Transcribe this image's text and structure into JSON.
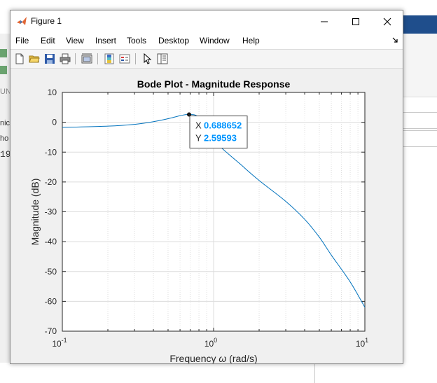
{
  "window": {
    "title": "Figure 1",
    "controls": {
      "minimize": "—",
      "maximize": "☐",
      "close": "✕"
    }
  },
  "menubar": {
    "items": [
      "File",
      "Edit",
      "View",
      "Insert",
      "Tools",
      "Desktop",
      "Window",
      "Help"
    ],
    "overflow_icon": "dock-arrow-icon"
  },
  "toolbar": {
    "icons": [
      "new-figure-icon",
      "open-file-icon",
      "save-icon",
      "print-icon",
      "link-plot-icon",
      "colorbar-icon",
      "legend-icon",
      "pointer-icon",
      "property-inspector-icon"
    ]
  },
  "background": {
    "left_fragments": [
      "UN",
      "nicl",
      "ho",
      "19"
    ]
  },
  "chart_data": {
    "type": "line",
    "title": "Bode Plot - Magnitude Response",
    "xlabel_prefix": "Frequency ",
    "xlabel_symbol": "ω",
    "xlabel_suffix": " (rad/s)",
    "ylabel": "Magnitude (dB)",
    "xscale": "log",
    "xlim": [
      0.1,
      10
    ],
    "ylim": [
      -70,
      10
    ],
    "grid": true,
    "minor_grid_x": true,
    "xticks": [
      {
        "base": "10",
        "exp": "-1",
        "value": 0.1
      },
      {
        "base": "10",
        "exp": "0",
        "value": 1
      },
      {
        "base": "10",
        "exp": "1",
        "value": 10
      }
    ],
    "yticks": [
      "10",
      "0",
      "-10",
      "-20",
      "-30",
      "-40",
      "-50",
      "-60",
      "-70"
    ],
    "line_color": "#0072bd",
    "series": [
      {
        "x": [
          0.1,
          0.2,
          0.3,
          0.4,
          0.5,
          0.6,
          0.688652,
          0.8,
          1.0,
          1.5,
          2.0,
          3.0,
          4.0,
          5.0,
          6.0,
          8.0,
          10.0
        ],
        "y": [
          -1.7,
          -1.3,
          -0.7,
          0.2,
          1.2,
          2.2,
          2.59593,
          1.5,
          -6.0,
          -14.0,
          -19.5,
          -26.5,
          -32.5,
          -38.5,
          -44.5,
          -53.5,
          -62.0
        ]
      }
    ],
    "datatip": {
      "x_label": "X",
      "x_value": "0.688652",
      "y_label": "Y",
      "y_value": "2.59593",
      "x": 0.688652,
      "y": 2.59593,
      "value_color": "#0095ff"
    }
  }
}
